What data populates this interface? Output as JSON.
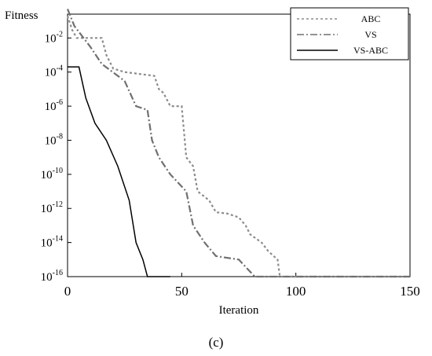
{
  "chart_data": {
    "type": "line",
    "y_label": "Fitness",
    "x_label": "Iteration",
    "caption": "(c)",
    "log_y": true,
    "legend": "upper right",
    "xlim": [
      0,
      150
    ],
    "xticks": [
      0,
      50,
      100,
      150
    ],
    "ylim": [
      1e-16,
      0.25
    ],
    "yticks": [
      {
        "value": 0.01,
        "label": "10^-2"
      },
      {
        "value": 0.0001,
        "label": "10^-4"
      },
      {
        "value": 1e-06,
        "label": "10^-6"
      },
      {
        "value": 1e-08,
        "label": "10^-8"
      },
      {
        "value": 1e-10,
        "label": "10^-10"
      },
      {
        "value": 1e-12,
        "label": "10^-12"
      },
      {
        "value": 1e-14,
        "label": "10^-14"
      },
      {
        "value": 1e-16,
        "label": "10^-16"
      }
    ],
    "series": [
      {
        "name": "ABC",
        "color": "#8c8c8c",
        "dash": "dotted",
        "x": [
          0,
          2,
          4,
          15,
          17,
          20,
          25,
          38,
          40,
          42,
          45,
          50,
          52,
          55,
          57,
          62,
          65,
          70,
          75,
          78,
          80,
          85,
          88,
          92,
          93,
          150
        ],
        "values": [
          0.2,
          0.03,
          0.01,
          0.01,
          0.001,
          0.00016,
          0.0001,
          6e-05,
          1e-05,
          6e-06,
          1e-06,
          1e-06,
          1e-09,
          3e-10,
          1e-11,
          3e-12,
          6e-13,
          5e-13,
          3e-13,
          1e-13,
          3e-14,
          1e-14,
          3e-15,
          1e-15,
          1e-16,
          1e-16
        ]
      },
      {
        "name": "VS",
        "color": "#707070",
        "dash": "dashdot",
        "x": [
          0,
          3,
          10,
          15,
          25,
          30,
          35,
          37,
          40,
          45,
          52,
          55,
          60,
          65,
          75,
          82,
          150
        ],
        "values": [
          0.5,
          0.05,
          0.003,
          0.0003,
          3e-05,
          1e-06,
          6e-07,
          1e-08,
          1e-09,
          1e-10,
          1e-11,
          1e-13,
          1e-14,
          1.6e-15,
          1e-15,
          1e-16,
          1e-16
        ]
      },
      {
        "name": "VS-ABC",
        "color": "#000000",
        "dash": "solid",
        "x": [
          0,
          5,
          8,
          12,
          17,
          22,
          27,
          30,
          33,
          35,
          45
        ],
        "values": [
          0.0002,
          0.0002,
          3e-06,
          1e-07,
          1e-08,
          3e-10,
          3e-12,
          1e-14,
          1e-15,
          1e-16,
          1e-16
        ]
      }
    ]
  }
}
